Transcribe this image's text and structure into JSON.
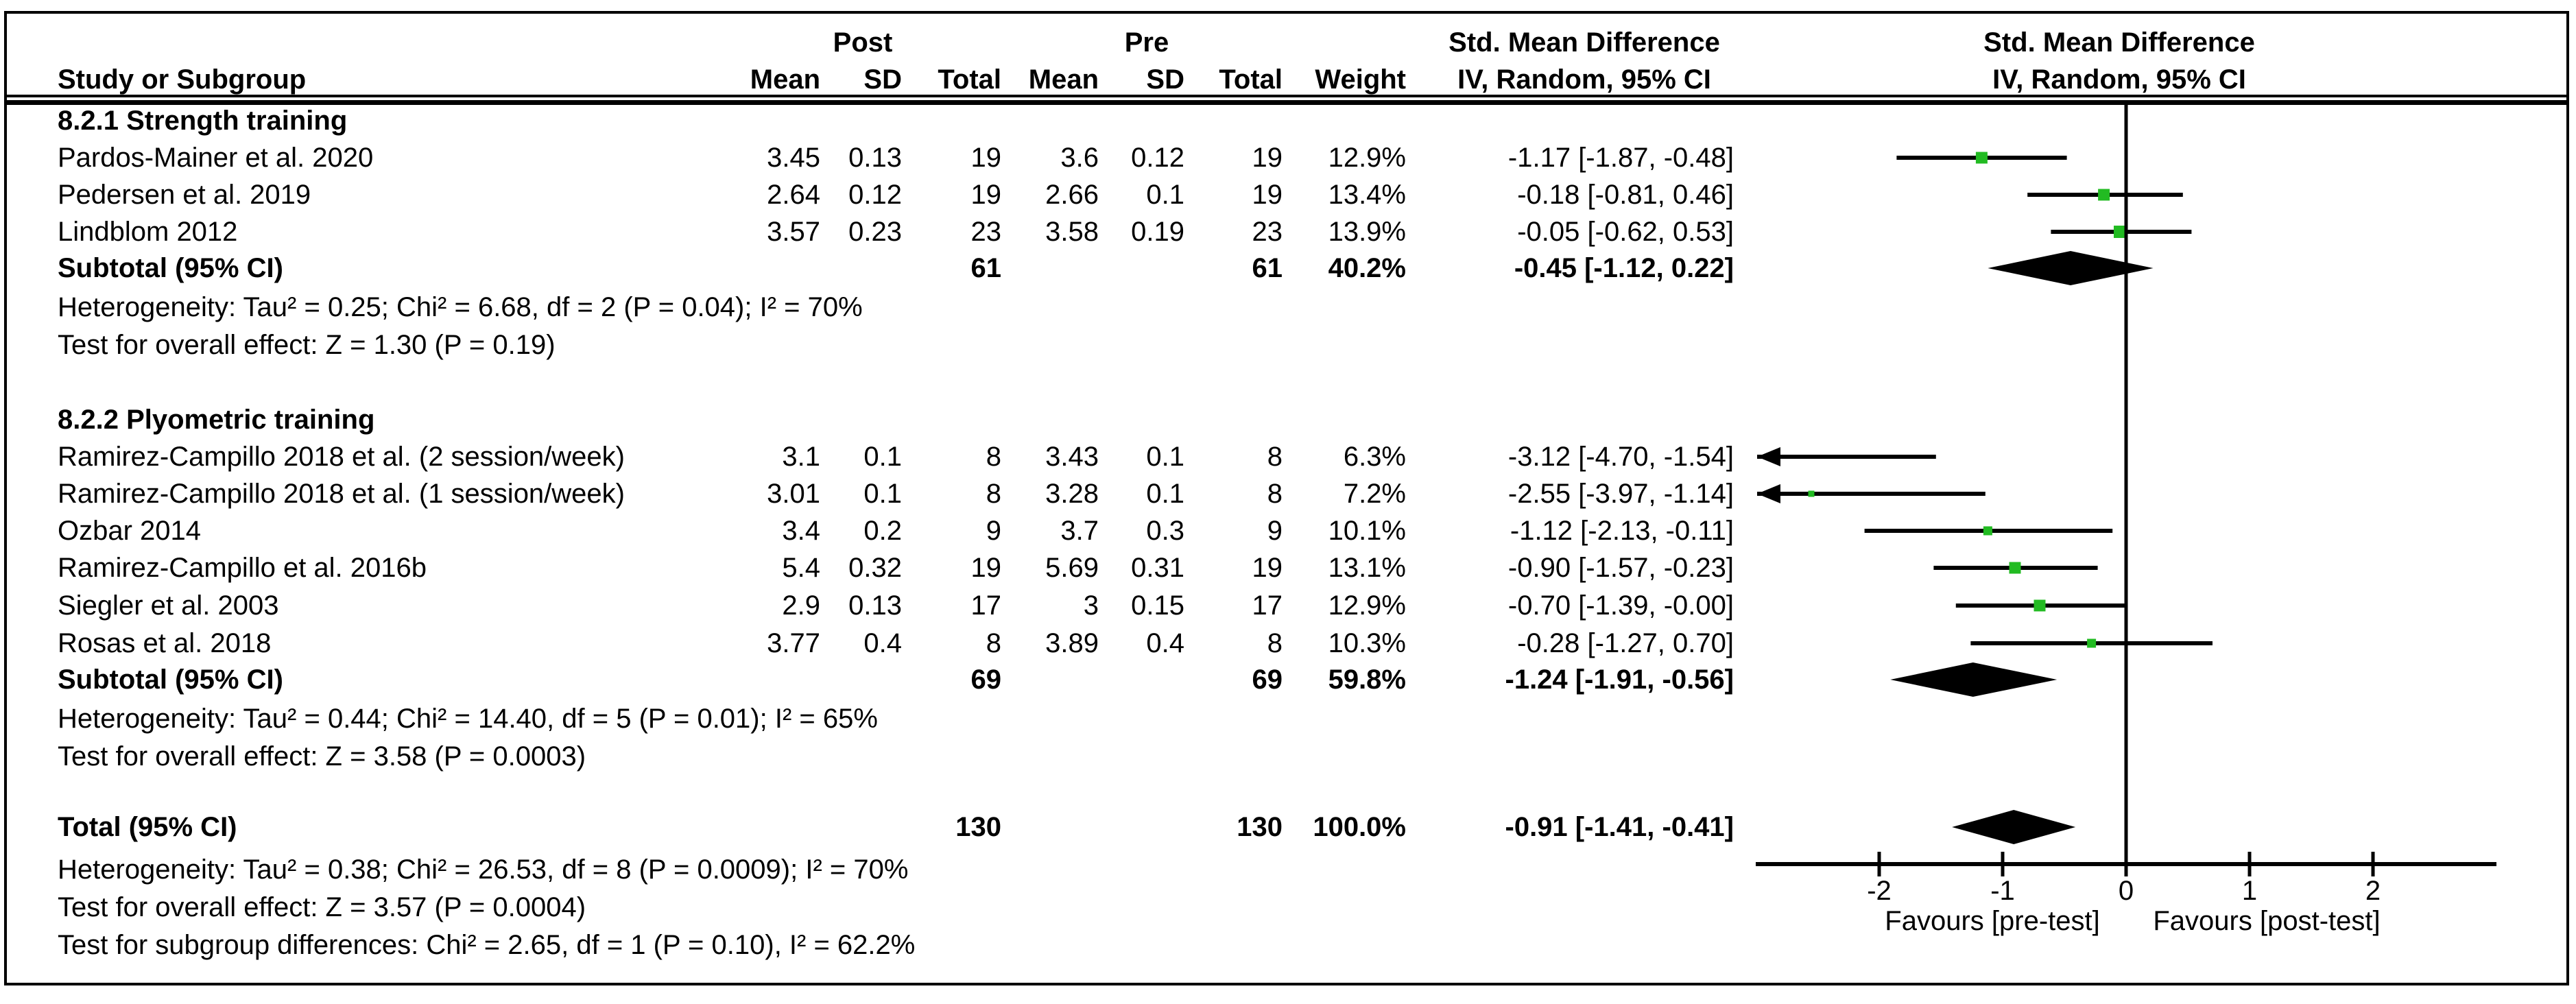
{
  "chart_data": {
    "type": "forest",
    "header": {
      "study": "Study or Subgroup",
      "post_group": "Post",
      "pre_group": "Pre",
      "effect_line1": "Std. Mean Difference",
      "effect_line2": "IV, Random, 95% CI",
      "plot_line1": "Std. Mean Difference",
      "plot_line2": "IV, Random, 95% CI",
      "mean": "Mean",
      "sd": "SD",
      "total": "Total",
      "weight": "Weight"
    },
    "axis": {
      "min": -3,
      "max": 3,
      "ticks": [
        -2,
        -1,
        0,
        1,
        2
      ],
      "tick_labels": [
        "-2",
        "-1",
        "0",
        "1",
        "2"
      ],
      "favours_left": "Favours [pre-test]",
      "favours_right": "Favours [post-test]"
    },
    "colors": {
      "square": "#22bb22",
      "line": "#000000",
      "diamond": "#000000"
    },
    "groups": [
      {
        "title": "8.2.1 Strength training",
        "studies": [
          {
            "label": "Pardos-Mainer et al. 2020",
            "post_mean": "3.45",
            "post_sd": "0.13",
            "post_total": "19",
            "pre_mean": "3.6",
            "pre_sd": "0.12",
            "pre_total": "19",
            "weight": "12.9%",
            "weight_val": 12.9,
            "ci_text": "-1.17 [-1.87, -0.48]",
            "est": -1.17,
            "lo": -1.87,
            "hi": -0.48
          },
          {
            "label": "Pedersen et al. 2019",
            "post_mean": "2.64",
            "post_sd": "0.12",
            "post_total": "19",
            "pre_mean": "2.66",
            "pre_sd": "0.1",
            "pre_total": "19",
            "weight": "13.4%",
            "weight_val": 13.4,
            "ci_text": "-0.18 [-0.81, 0.46]",
            "est": -0.18,
            "lo": -0.81,
            "hi": 0.46
          },
          {
            "label": "Lindblom 2012",
            "post_mean": "3.57",
            "post_sd": "0.23",
            "post_total": "23",
            "pre_mean": "3.58",
            "pre_sd": "0.19",
            "pre_total": "23",
            "weight": "13.9%",
            "weight_val": 13.9,
            "ci_text": "-0.05 [-0.62, 0.53]",
            "est": -0.05,
            "lo": -0.62,
            "hi": 0.53
          }
        ],
        "subtotal": {
          "label": "Subtotal (95% CI)",
          "post_total": "61",
          "pre_total": "61",
          "weight": "40.2%",
          "ci_text": "-0.45 [-1.12, 0.22]",
          "est": -0.45,
          "lo": -1.12,
          "hi": 0.22
        },
        "heterogeneity": "Heterogeneity: Tau² = 0.25; Chi² = 6.68, df = 2 (P = 0.04); I² = 70%",
        "overall_effect": "Test for overall effect: Z = 1.30 (P = 0.19)"
      },
      {
        "title": "8.2.2 Plyometric training",
        "studies": [
          {
            "label": "Ramirez-Campillo 2018 et al. (2 session/week)",
            "post_mean": "3.1",
            "post_sd": "0.1",
            "post_total": "8",
            "pre_mean": "3.43",
            "pre_sd": "0.1",
            "pre_total": "8",
            "weight": "6.3%",
            "weight_val": 6.3,
            "ci_text": "-3.12 [-4.70, -1.54]",
            "est": -3.12,
            "lo": -4.7,
            "hi": -1.54
          },
          {
            "label": "Ramirez-Campillo 2018 et al. (1 session/week)",
            "post_mean": "3.01",
            "post_sd": "0.1",
            "post_total": "8",
            "pre_mean": "3.28",
            "pre_sd": "0.1",
            "pre_total": "8",
            "weight": "7.2%",
            "weight_val": 7.2,
            "ci_text": "-2.55 [-3.97, -1.14]",
            "est": -2.55,
            "lo": -3.97,
            "hi": -1.14
          },
          {
            "label": "Ozbar 2014",
            "post_mean": "3.4",
            "post_sd": "0.2",
            "post_total": "9",
            "pre_mean": "3.7",
            "pre_sd": "0.3",
            "pre_total": "9",
            "weight": "10.1%",
            "weight_val": 10.1,
            "ci_text": "-1.12 [-2.13, -0.11]",
            "est": -1.12,
            "lo": -2.13,
            "hi": -0.11
          },
          {
            "label": "Ramirez-Campillo et al. 2016b",
            "post_mean": "5.4",
            "post_sd": "0.32",
            "post_total": "19",
            "pre_mean": "5.69",
            "pre_sd": "0.31",
            "pre_total": "19",
            "weight": "13.1%",
            "weight_val": 13.1,
            "ci_text": "-0.90 [-1.57, -0.23]",
            "est": -0.9,
            "lo": -1.57,
            "hi": -0.23
          },
          {
            "label": "Siegler et al. 2003",
            "post_mean": "2.9",
            "post_sd": "0.13",
            "post_total": "17",
            "pre_mean": "3",
            "pre_sd": "0.15",
            "pre_total": "17",
            "weight": "12.9%",
            "weight_val": 12.9,
            "ci_text": "-0.70 [-1.39, -0.00]",
            "est": -0.7,
            "lo": -1.39,
            "hi": 0.0
          },
          {
            "label": "Rosas et al. 2018",
            "post_mean": "3.77",
            "post_sd": "0.4",
            "post_total": "8",
            "pre_mean": "3.89",
            "pre_sd": "0.4",
            "pre_total": "8",
            "weight": "10.3%",
            "weight_val": 10.3,
            "ci_text": "-0.28 [-1.27, 0.70]",
            "est": -0.28,
            "lo": -1.27,
            "hi": 0.7
          }
        ],
        "subtotal": {
          "label": "Subtotal (95% CI)",
          "post_total": "69",
          "pre_total": "69",
          "weight": "59.8%",
          "ci_text": "-1.24 [-1.91, -0.56]",
          "est": -1.24,
          "lo": -1.91,
          "hi": -0.56
        },
        "heterogeneity": "Heterogeneity: Tau² = 0.44; Chi² = 14.40, df = 5 (P = 0.01); I² = 65%",
        "overall_effect": "Test for overall effect: Z = 3.58 (P = 0.0003)"
      }
    ],
    "total": {
      "label": "Total (95% CI)",
      "post_total": "130",
      "pre_total": "130",
      "weight": "100.0%",
      "ci_text": "-0.91 [-1.41, -0.41]",
      "est": -0.91,
      "lo": -1.41,
      "hi": -0.41
    },
    "total_heterogeneity": "Heterogeneity: Tau² = 0.38; Chi² = 26.53, df = 8 (P = 0.0009); I² = 70%",
    "total_overall_effect": "Test for overall effect: Z = 3.57 (P = 0.0004)",
    "subgroup_differences": "Test for subgroup differences: Chi² = 2.65, df = 1 (P = 0.10), I² = 62.2%"
  }
}
